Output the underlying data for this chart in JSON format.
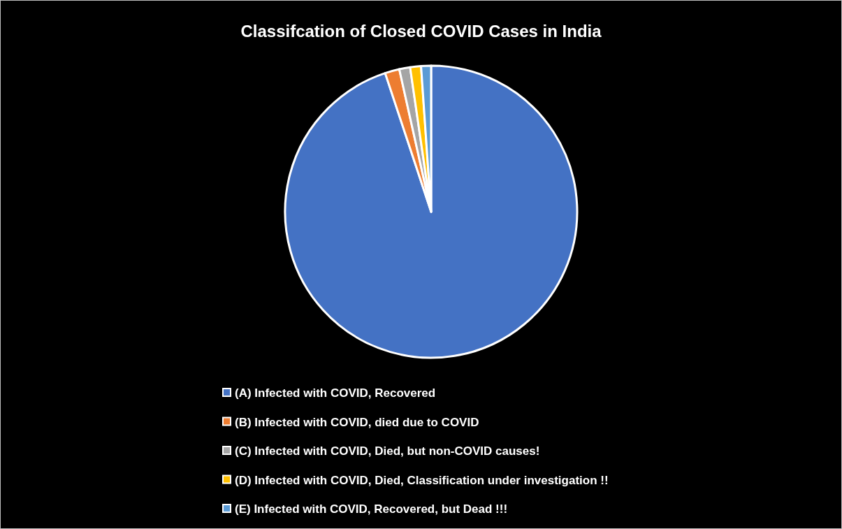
{
  "chart_data": {
    "type": "pie",
    "title": "Classifcation of Closed COVID Cases in India",
    "categories": [
      "(A) Infected with COVID, Recovered",
      "(B) Infected with COVID, died due to COVID",
      "(C) Infected with COVID, Died, but non-COVID causes!",
      "(D) Infected with COVID, Died, Classification under investigation !!",
      "(E) Infected with COVID, Recovered, but Dead !!!"
    ],
    "values": [
      94.9,
      1.6,
      1.2,
      1.2,
      1.1
    ],
    "colors": [
      "#4472c4",
      "#ed7d31",
      "#a5a5a5",
      "#ffc000",
      "#5b9bd5"
    ],
    "legend": "bottom"
  }
}
